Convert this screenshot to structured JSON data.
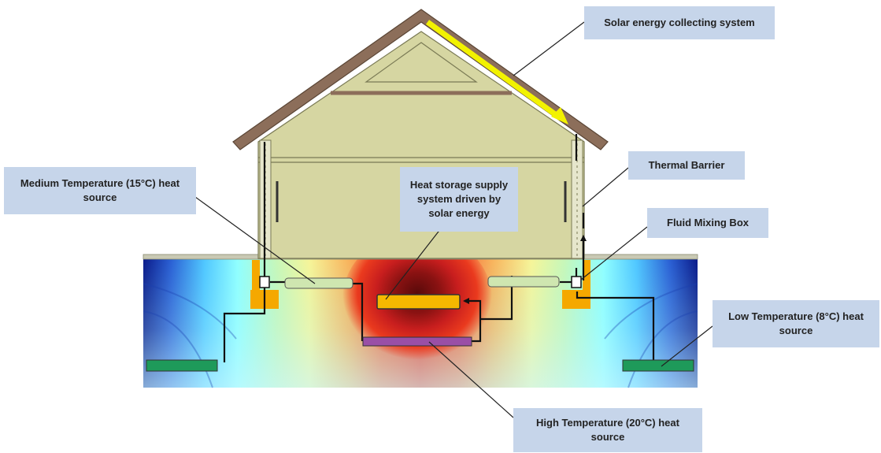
{
  "labels": {
    "solar_collector": "Solar energy collecting system",
    "thermal_barrier": "Thermal Barrier",
    "fluid_mixing_box": "Fluid Mixing Box",
    "medium_temp_source": "Medium Temperature (15°C) heat source",
    "heat_storage": "Heat storage supply system driven by solar energy",
    "low_temp_source": "Low Temperature (8°C) heat source",
    "high_temp_source": "High Temperature (20°C) heat source"
  },
  "colors": {
    "callout_fill": "#c6d5ea",
    "house_wall": "#d6d6a2",
    "roof": "#8c6e5a",
    "solar_arrow": "#f2f200",
    "heat_storage_unit": "#f5b800",
    "footing": "#f5a800",
    "high_temp_pipe": "#9a4fa6",
    "low_medium_pipe": "#1e9a5a",
    "mixing_pipe": "#cfe6b0"
  }
}
